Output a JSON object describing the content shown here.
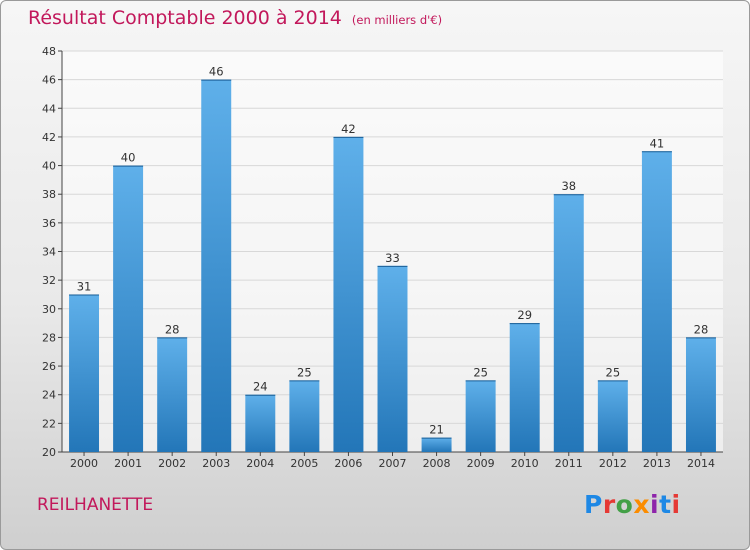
{
  "chart_data": {
    "type": "bar",
    "title": "Résultat Comptable 2000 à 2014",
    "subtitle": "(en milliers d'€)",
    "categories": [
      "2000",
      "2001",
      "2002",
      "2003",
      "2004",
      "2005",
      "2006",
      "2007",
      "2008",
      "2009",
      "2010",
      "2011",
      "2012",
      "2013",
      "2014"
    ],
    "values": [
      31,
      40,
      28,
      46,
      24,
      25,
      42,
      33,
      21,
      25,
      29,
      38,
      25,
      41,
      28
    ],
    "ylim": [
      20,
      48
    ],
    "yticks": [
      20,
      22,
      24,
      26,
      28,
      30,
      32,
      34,
      36,
      38,
      40,
      42,
      44,
      46,
      48
    ],
    "xlabel": "",
    "ylabel": "",
    "grid": true
  },
  "place_name": "REILHANETTE",
  "logo_text": "Proxiti",
  "colors": {
    "bar_light": "#5fb0ea",
    "bar_dark": "#2376b8",
    "title": "#c2185b",
    "grid": "#d8d8d8",
    "axis": "#444444"
  }
}
